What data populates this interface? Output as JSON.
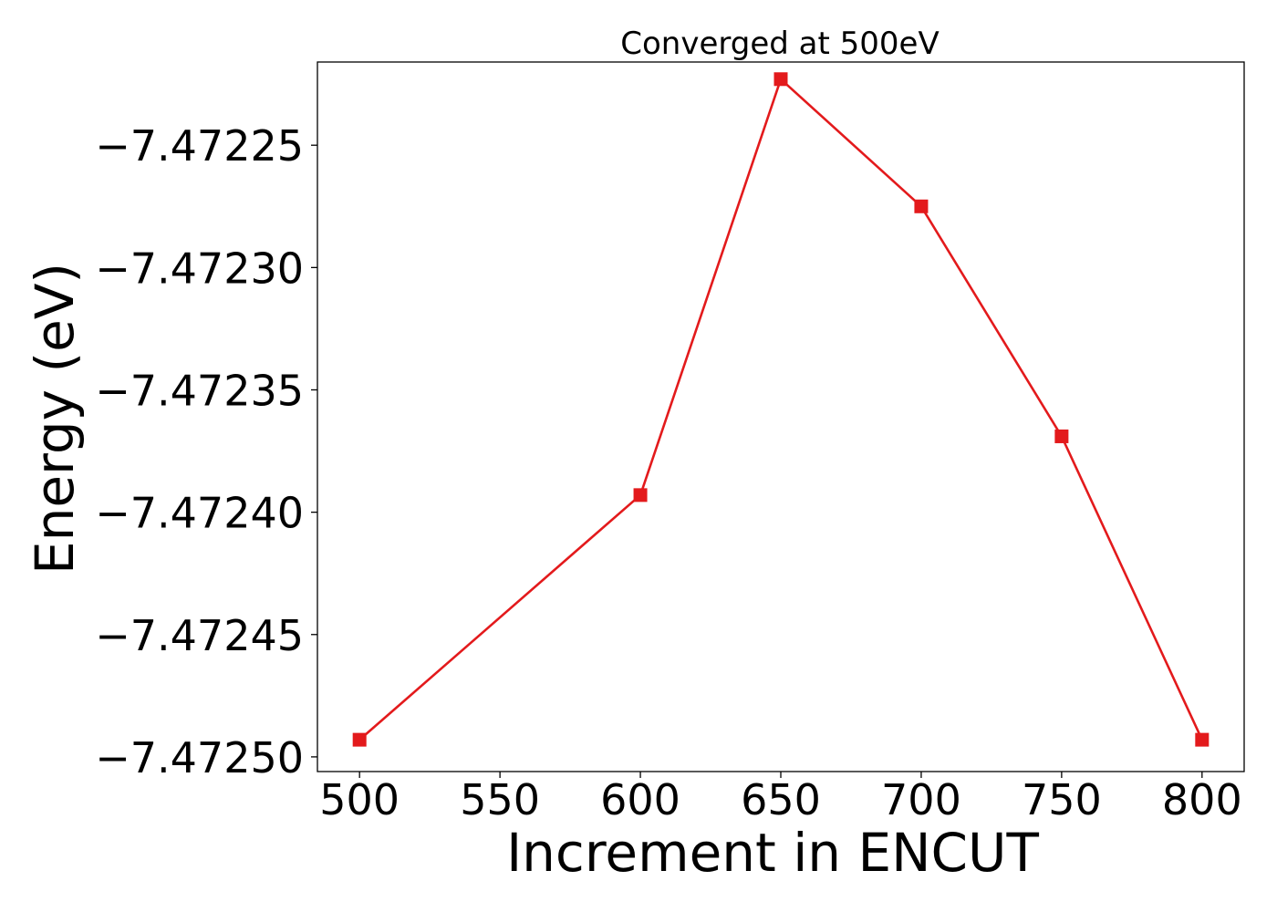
{
  "chart_data": {
    "type": "line",
    "title": "Converged at 500eV",
    "xlabel": "Increment in ENCUT",
    "ylabel": "Energy (eV)",
    "xlim": [
      485,
      815
    ],
    "ylim": [
      -7.472506,
      -7.472216
    ],
    "x": [
      500,
      600,
      650,
      700,
      750,
      800
    ],
    "series": [
      {
        "values": [
          -7.472493,
          -7.472393,
          -7.472223,
          -7.472275,
          -7.472369,
          -7.472493
        ]
      }
    ],
    "xticks": [
      500,
      550,
      600,
      650,
      700,
      750,
      800
    ],
    "xtick_labels": [
      "500",
      "550",
      "600",
      "650",
      "700",
      "750",
      "800"
    ],
    "yticks": [
      -7.47225,
      -7.4723,
      -7.47235,
      -7.4724,
      -7.47245,
      -7.4725
    ],
    "ytick_labels": [
      "−7.47225",
      "−7.47230",
      "−7.47235",
      "−7.47240",
      "−7.47245",
      "−7.47250"
    ],
    "marker": "square",
    "grid": false,
    "legend": false,
    "colors": {
      "series": "#e31a1c",
      "axes": "#000000",
      "background": "#ffffff"
    }
  }
}
